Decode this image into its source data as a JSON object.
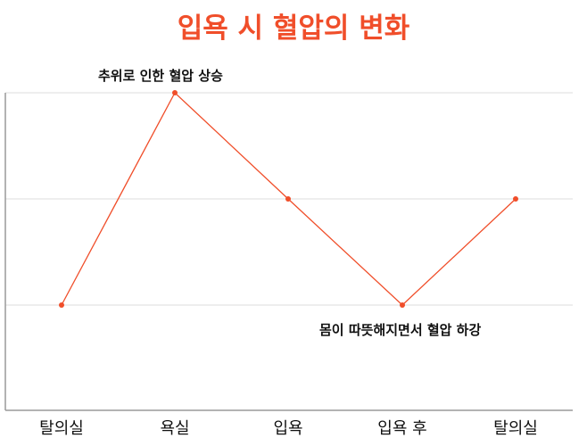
{
  "chart_data": {
    "type": "line",
    "title": "입욕 시 혈압의 변화",
    "categories": [
      "탈의실",
      "욕실",
      "입욕",
      "입욕 후",
      "탈의실"
    ],
    "series": [
      {
        "name": "혈압",
        "values": [
          1,
          3,
          2,
          1,
          2
        ],
        "color": "#f04e2a"
      }
    ],
    "xlabel": "",
    "ylabel": "",
    "ylim": [
      0,
      3
    ],
    "yticks_shown": false,
    "grid": {
      "horizontal": true,
      "vertical": false,
      "lines_at": [
        1,
        2,
        3
      ]
    },
    "legend": null,
    "annotations": [
      {
        "text": "추위로 인한 혈압 상승",
        "near_point": 1,
        "position": "above"
      },
      {
        "text": "몸이 따뜻해지면서 혈압 하강",
        "near_point": 3,
        "position": "below"
      }
    ],
    "colors": {
      "title": "#f04e2a",
      "line": "#f04e2a",
      "grid": "#e3e3e3",
      "axis": "#9a9a9a"
    }
  }
}
